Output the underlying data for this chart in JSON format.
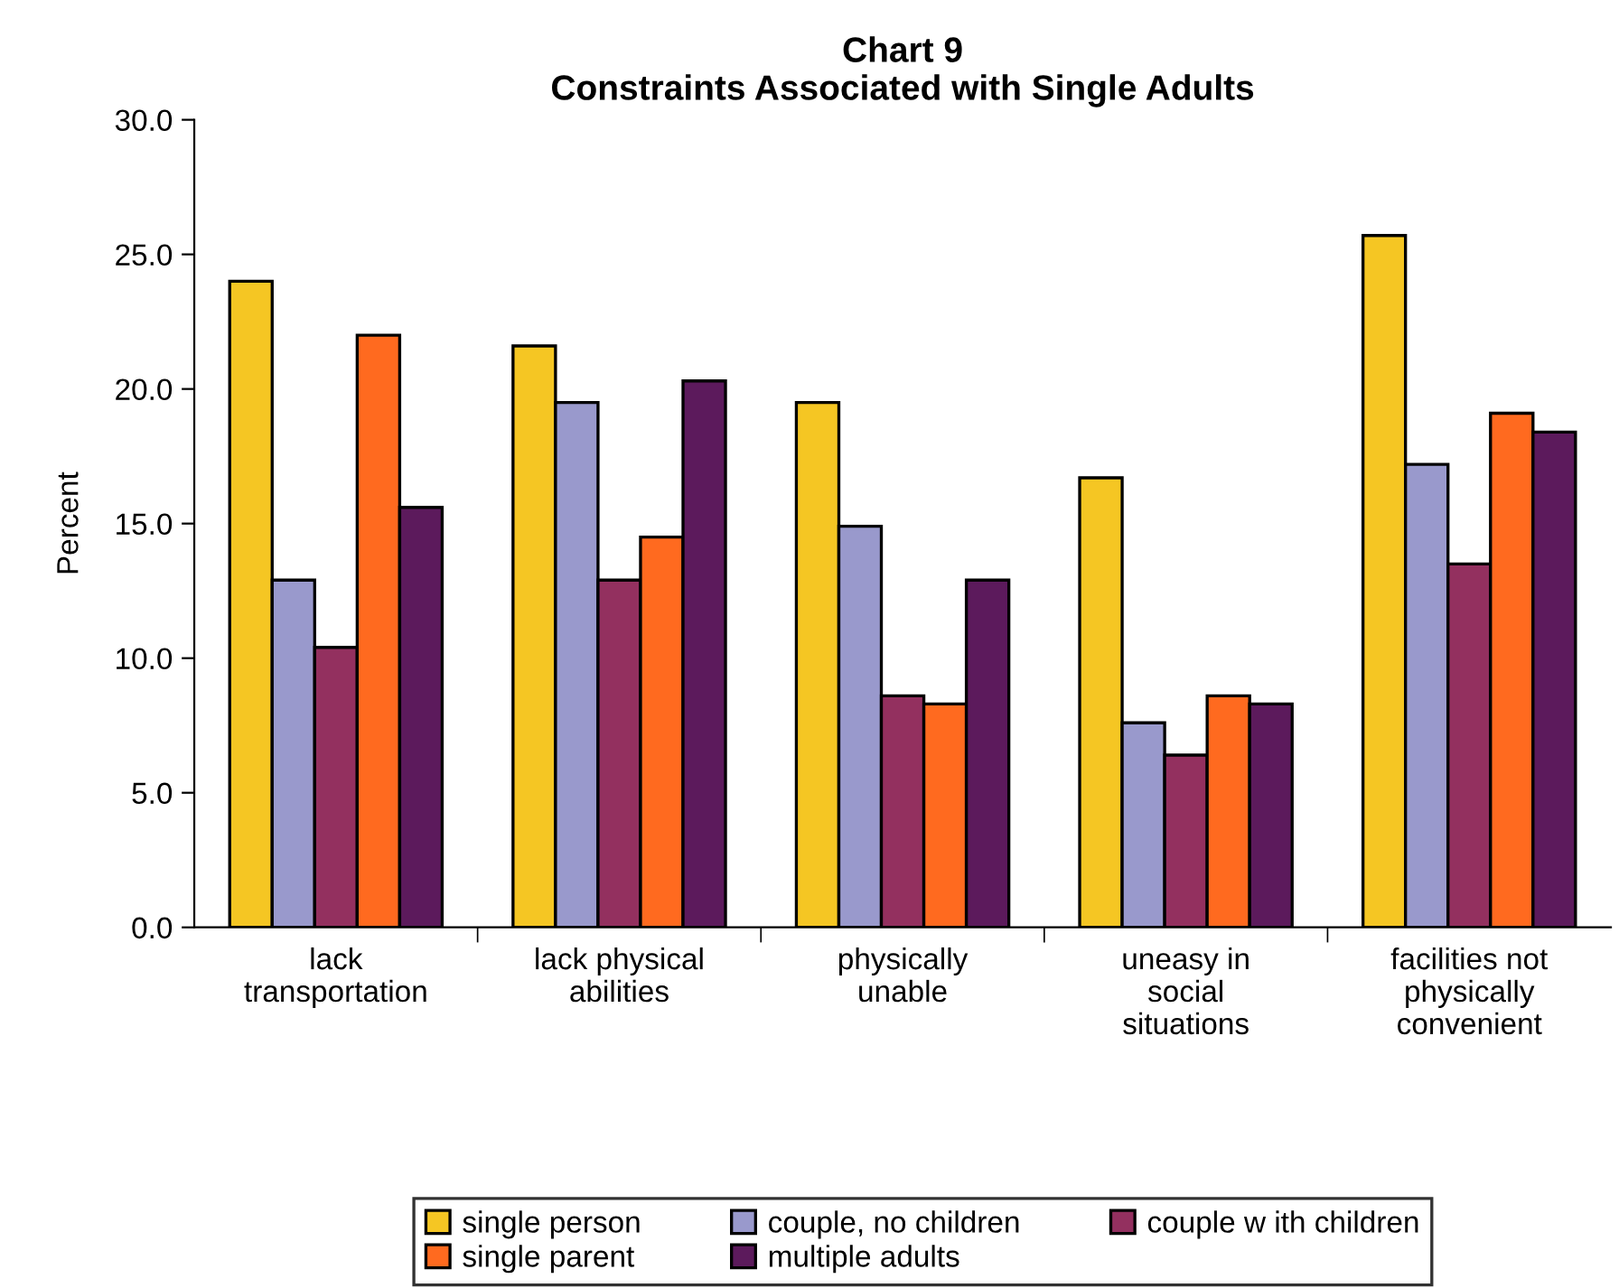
{
  "chart_data": {
    "type": "bar",
    "title": "Chart 9\nConstraints Associated with Single Adults",
    "ylabel": "Percent",
    "categories": [
      "lack\ntransportation",
      "lack physical\nabilities",
      "physically\nunable",
      "uneasy in\nsocial\nsituations",
      "facilities not\nphysically\nconvenient"
    ],
    "series": [
      {
        "name": "single person",
        "color": "#f5c623",
        "values": [
          24.0,
          21.6,
          19.5,
          16.7,
          25.7
        ]
      },
      {
        "name": "couple, no children",
        "color": "#9999cc",
        "values": [
          12.9,
          19.5,
          14.9,
          7.6,
          17.2
        ]
      },
      {
        "name": "couple w ith children",
        "color": "#93305f",
        "values": [
          10.4,
          12.9,
          8.6,
          6.4,
          13.5
        ]
      },
      {
        "name": "single parent",
        "color": "#ff6a1f",
        "values": [
          22.0,
          14.5,
          8.3,
          8.6,
          19.1
        ]
      },
      {
        "name": "multiple adults",
        "color": "#5c1a5c",
        "values": [
          15.6,
          20.3,
          12.9,
          8.3,
          18.4
        ]
      }
    ],
    "ylim": [
      0,
      30
    ],
    "yticks": [
      {
        "value": 0,
        "label": "0.0"
      },
      {
        "value": 5,
        "label": "5.0"
      },
      {
        "value": 10,
        "label": "10.0"
      },
      {
        "value": 15,
        "label": "15.0"
      },
      {
        "value": 20,
        "label": "20.0"
      },
      {
        "value": 25,
        "label": "25.0"
      },
      {
        "value": 30,
        "label": "30.0"
      }
    ],
    "grid": false,
    "legend": "bottom"
  }
}
